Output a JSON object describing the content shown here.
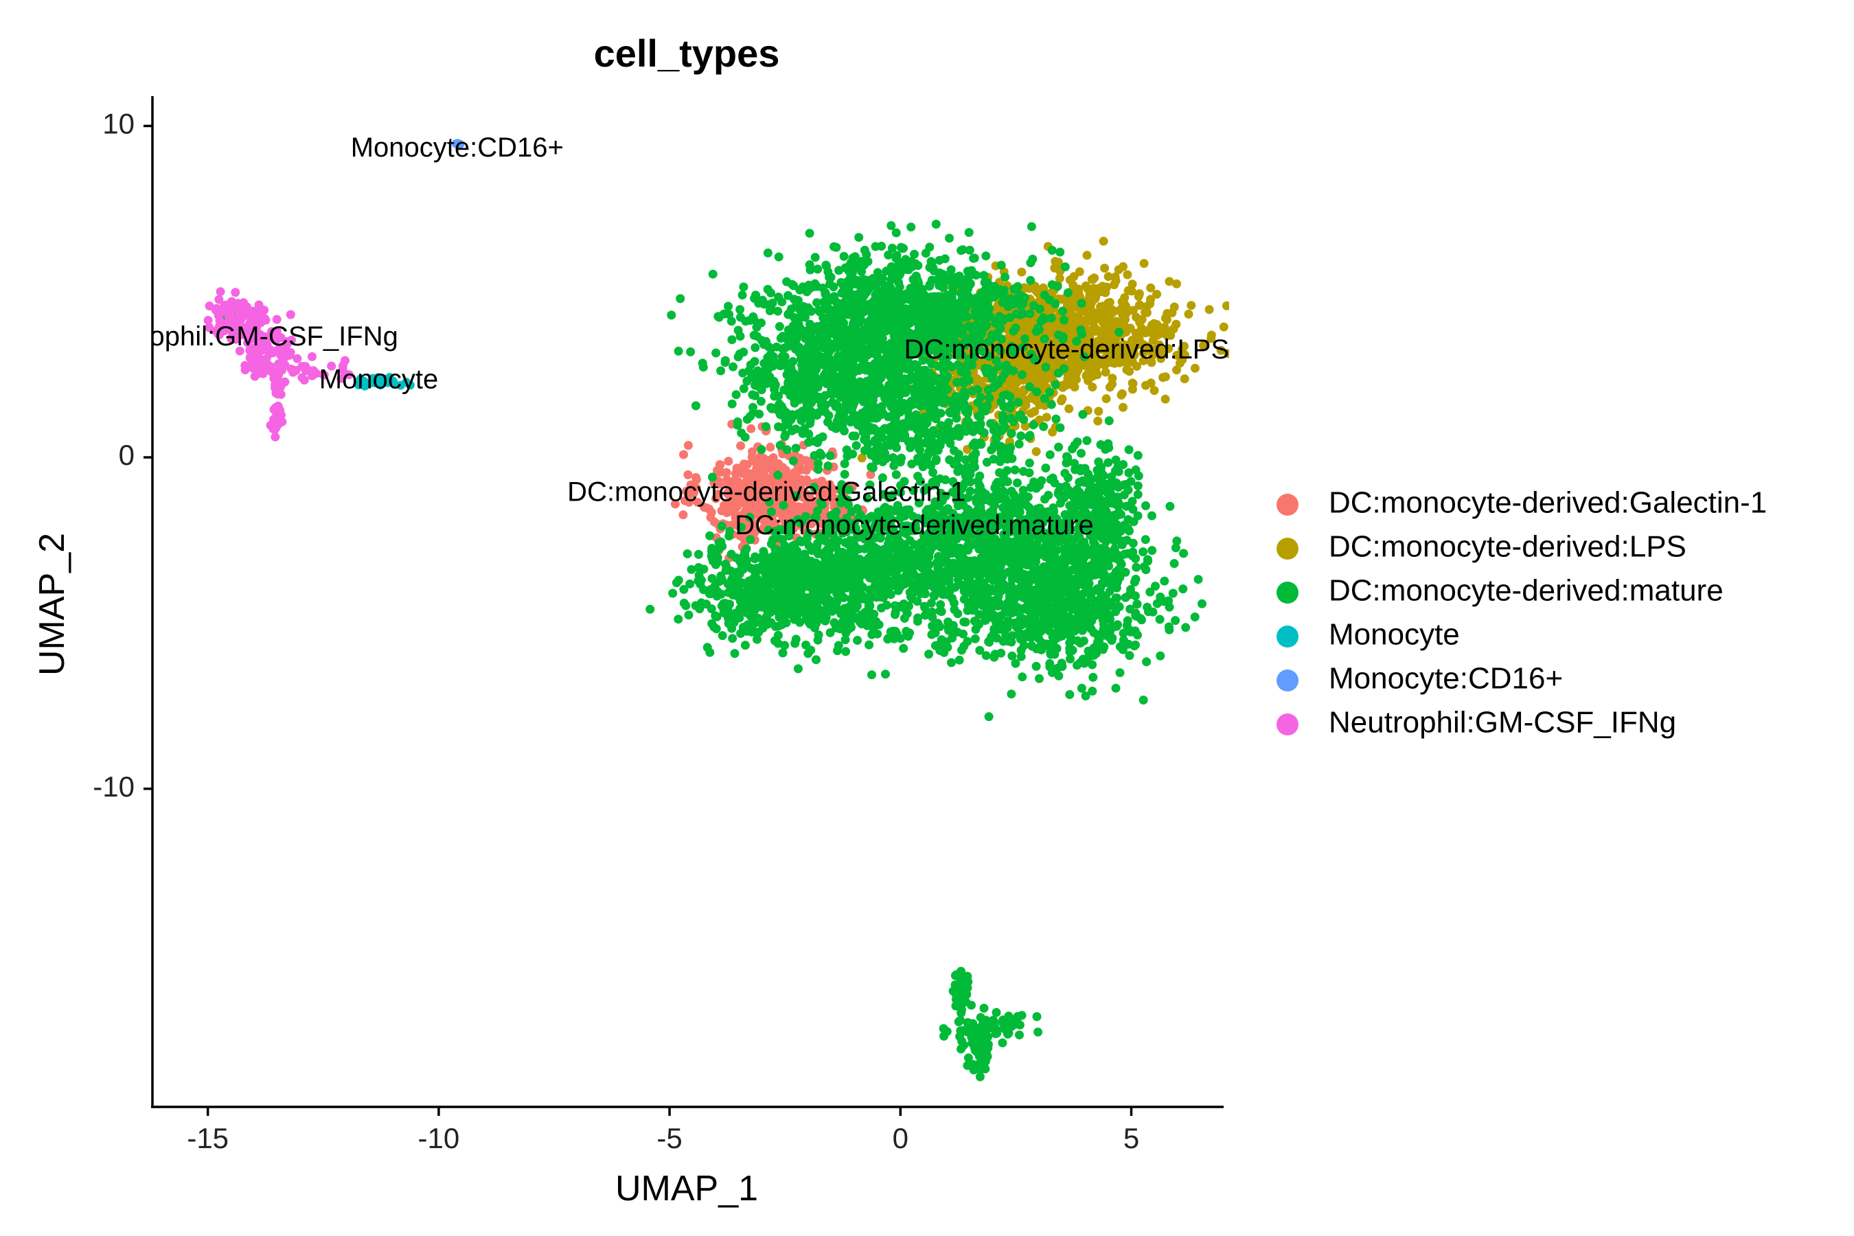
{
  "chart_data": {
    "type": "scatter",
    "title": "cell_types",
    "xlabel": "UMAP_1",
    "ylabel": "UMAP_2",
    "xlim": [
      -16.2,
      7.0
    ],
    "ylim": [
      -19.6,
      10.9
    ],
    "x_ticks": [
      -15,
      -10,
      -5,
      0,
      5
    ],
    "y_ticks": [
      10,
      0,
      -10
    ],
    "x_tick_labels": [
      "-15",
      "-10",
      "-5",
      "0",
      "5"
    ],
    "y_tick_labels": [
      "10",
      "0",
      "-10"
    ],
    "grid": false,
    "legend_position": "right",
    "series": [
      {
        "name": "DC:monocyte-derived:Galectin-1",
        "color": "#F8766D",
        "clusters": [
          {
            "cx": -2.9,
            "cy": -1.1,
            "sx": 0.7,
            "sy": 0.75,
            "n": 420
          },
          {
            "cx": -1.7,
            "cy": -1.6,
            "sx": 0.5,
            "sy": 0.4,
            "n": 120
          }
        ]
      },
      {
        "name": "DC:monocyte-derived:LPS",
        "color": "#B79F00",
        "clusters": [
          {
            "cx": 3.6,
            "cy": 3.7,
            "sx": 1.2,
            "sy": 0.85,
            "n": 900
          },
          {
            "cx": 2.3,
            "cy": 2.5,
            "sx": 0.8,
            "sy": 0.9,
            "n": 300
          }
        ]
      },
      {
        "name": "DC:monocyte-derived:mature",
        "color": "#00BA38",
        "clusters": [
          {
            "cx": 0.0,
            "cy": 4.2,
            "sx": 1.5,
            "sy": 1.0,
            "n": 1100
          },
          {
            "cx": -1.5,
            "cy": 2.4,
            "sx": 1.0,
            "sy": 0.9,
            "n": 500
          },
          {
            "cx": 0.5,
            "cy": 1.2,
            "sx": 1.3,
            "sy": 0.8,
            "n": 500
          },
          {
            "cx": -2.6,
            "cy": -4.0,
            "sx": 1.0,
            "sy": 0.7,
            "n": 600
          },
          {
            "cx": -0.2,
            "cy": -3.3,
            "sx": 1.3,
            "sy": 1.1,
            "n": 800
          },
          {
            "cx": 3.3,
            "cy": -4.0,
            "sx": 1.1,
            "sy": 1.2,
            "n": 900
          },
          {
            "cx": 4.2,
            "cy": -1.5,
            "sx": 0.45,
            "sy": 0.8,
            "n": 250
          },
          {
            "cx": 1.9,
            "cy": -2.0,
            "sx": 0.8,
            "sy": 0.8,
            "n": 300
          },
          {
            "cx": 1.3,
            "cy": -16.1,
            "sx": 0.08,
            "sy": 0.4,
            "n": 40
          },
          {
            "cx": 1.55,
            "cy": -17.2,
            "sx": 0.3,
            "sy": 0.35,
            "n": 40
          },
          {
            "cx": 1.7,
            "cy": -17.9,
            "sx": 0.15,
            "sy": 0.3,
            "n": 40
          },
          {
            "cx": 2.3,
            "cy": -17.1,
            "sx": 0.25,
            "sy": 0.15,
            "n": 30
          },
          {
            "cx": -14.5,
            "cy": 4.3,
            "sx": 0.05,
            "sy": 0.05,
            "n": 2
          },
          {
            "cx": -13.5,
            "cy": 0.9,
            "sx": 0.03,
            "sy": 0.03,
            "n": 1
          }
        ]
      },
      {
        "name": "Monocyte",
        "color": "#00BFC4",
        "clusters": [
          {
            "cx": -11.3,
            "cy": 2.3,
            "sx": 0.35,
            "sy": 0.07,
            "n": 35
          }
        ]
      },
      {
        "name": "Monocyte:CD16+",
        "color": "#619CFF",
        "clusters": [
          {
            "cx": -9.6,
            "cy": 9.5,
            "sx": 0.04,
            "sy": 0.04,
            "n": 4
          }
        ]
      },
      {
        "name": "Neutrophil:GM-CSF_IFNg",
        "color": "#F564E3",
        "clusters": [
          {
            "cx": -14.3,
            "cy": 4.1,
            "sx": 0.35,
            "sy": 0.3,
            "n": 120
          },
          {
            "cx": -13.7,
            "cy": 3.1,
            "sx": 0.3,
            "sy": 0.35,
            "n": 70
          },
          {
            "cx": -13.5,
            "cy": 1.6,
            "sx": 0.06,
            "sy": 0.5,
            "n": 35
          },
          {
            "cx": -12.6,
            "cy": 2.6,
            "sx": 0.45,
            "sy": 0.15,
            "n": 25
          }
        ]
      }
    ],
    "cluster_labels": [
      {
        "text": "Monocyte:CD16+",
        "x": -9.6,
        "y": 9.3
      },
      {
        "text": "Neutrophil:GM-CSF_IFNg",
        "x": -14.3,
        "y": 3.6
      },
      {
        "text": "Monocyte",
        "x": -11.3,
        "y": 2.3
      },
      {
        "text": "DC:monocyte-derived:LPS",
        "x": 3.6,
        "y": 3.2
      },
      {
        "text": "DC:monocyte-derived:Galectin-1",
        "x": -2.9,
        "y": -1.1
      },
      {
        "text": "DC:monocyte-derived:mature",
        "x": 0.3,
        "y": -2.1
      }
    ]
  }
}
